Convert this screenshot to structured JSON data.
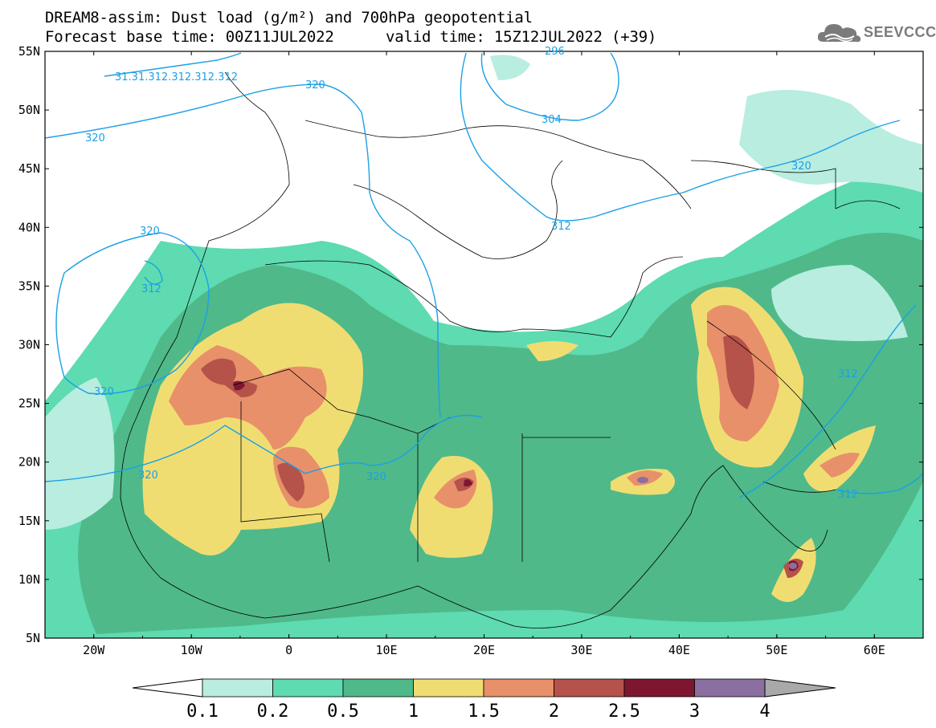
{
  "header": {
    "line1": "DREAM8-assim: Dust load (g/m²) and 700hPa geopotential",
    "line2_base": "Forecast base time: 00Z11JUL2022",
    "line2_valid": "valid time: 15Z12JUL2022 (+39)"
  },
  "logo": {
    "text": "SEEVCCC",
    "icon": "cloud-logo-icon",
    "color": "#7b7b7b"
  },
  "map": {
    "lat_ticks": [
      "55N",
      "50N",
      "45N",
      "40N",
      "35N",
      "30N",
      "25N",
      "20N",
      "15N",
      "10N",
      "5N"
    ],
    "lon_ticks": [
      "20W",
      "10W",
      "0",
      "10E",
      "20E",
      "30E",
      "40E",
      "50E",
      "60E"
    ],
    "contour_color": "#1ba0e6",
    "contour_labels": [
      "31.31.312.312.312.312",
      "320",
      "320",
      "320",
      "320",
      "312",
      "320",
      "320",
      "320",
      "304",
      "312",
      "312",
      "312",
      "320",
      "296"
    ]
  },
  "colorbar": {
    "ticks": [
      "0.1",
      "0.2",
      "0.5",
      "1",
      "1.5",
      "2",
      "2.5",
      "3",
      "4"
    ],
    "colors": [
      "#ffffff",
      "#b8ede0",
      "#5edbb0",
      "#4fb98a",
      "#f0dd72",
      "#e8906a",
      "#b5524a",
      "#7f1631",
      "#8b6fa0",
      "#a9a9a9"
    ]
  }
}
